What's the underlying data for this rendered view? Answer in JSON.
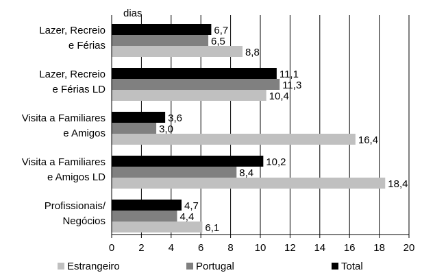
{
  "chart_data": {
    "type": "bar",
    "orientation": "horizontal",
    "unit_label": "dias",
    "categories": [
      [
        "Lazer, Recreio",
        "e Férias"
      ],
      [
        "Lazer, Recreio",
        "e Férias LD"
      ],
      [
        "Visita a Familiares",
        "e Amigos"
      ],
      [
        "Visita a Familiares",
        "e Amigos LD"
      ],
      [
        "Profissionais/",
        "Negócios"
      ]
    ],
    "series": [
      {
        "name": "Total",
        "color": "#000000",
        "values": [
          6.7,
          11.1,
          3.6,
          10.2,
          4.7
        ],
        "labels": [
          "6,7",
          "11,1",
          "3,6",
          "10,2",
          "4,7"
        ]
      },
      {
        "name": "Portugal",
        "color": "#808080",
        "values": [
          6.5,
          11.3,
          3.0,
          8.4,
          4.4
        ],
        "labels": [
          "6,5",
          "11,3",
          "3,0",
          "8,4",
          "4,4"
        ]
      },
      {
        "name": "Estrangeiro",
        "color": "#c0c0c0",
        "values": [
          8.8,
          10.4,
          16.4,
          18.4,
          6.1
        ],
        "labels": [
          "8,8",
          "10,4",
          "16,4",
          "18,4",
          "6,1"
        ]
      }
    ],
    "legend_order": [
      "Estrangeiro",
      "Portugal",
      "Total"
    ],
    "legend_position": "bottom",
    "xlim": [
      0,
      20
    ],
    "xticks": [
      0,
      2,
      4,
      6,
      8,
      10,
      12,
      14,
      16,
      18,
      20
    ],
    "grid": "vertical"
  }
}
